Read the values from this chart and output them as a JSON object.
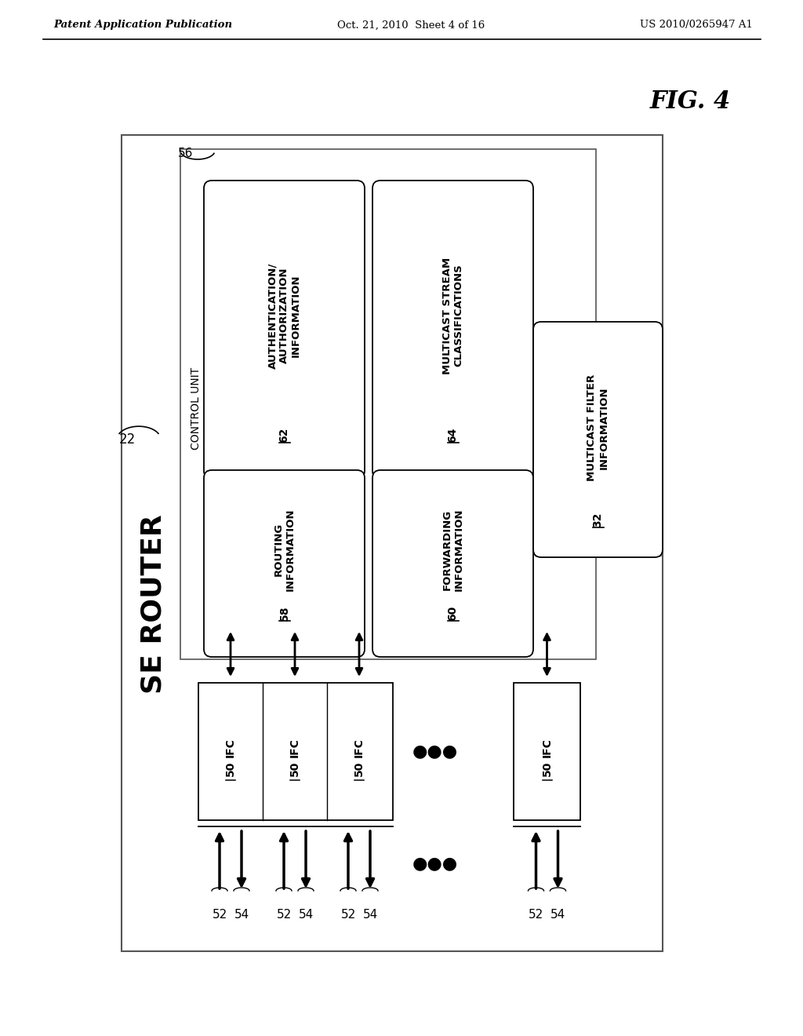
{
  "bg_color": "#ffffff",
  "header_left": "Patent Application Publication",
  "header_mid": "Oct. 21, 2010  Sheet 4 of 16",
  "header_right": "US 2010/0265947 A1",
  "fig_label": "FIG. 4",
  "se_router_label": "SE ROUTER",
  "label_22": "22",
  "label_56": "56",
  "control_unit_label": "CONTROL UNIT",
  "boxes": [
    {
      "label": "AUTHENTICATION/\nAUTHORIZATION\nINFORMATION",
      "num": "62"
    },
    {
      "label": "MULTICAST STREAM\nCLASSIFICATIONS",
      "num": "64"
    },
    {
      "label": "ROUTING\nINFORMATION",
      "num": "58"
    },
    {
      "label": "FORWARDING\nINFORMATION",
      "num": "60"
    }
  ],
  "multicast_filter_label": "MULTICAST FILTER\nINFORMATION",
  "multicast_filter_num": "32"
}
